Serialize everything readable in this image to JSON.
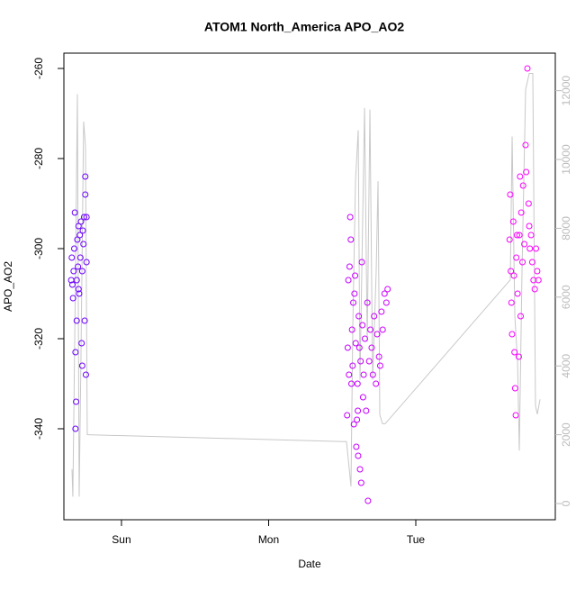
{
  "chart_data": {
    "type": "scatter",
    "title": "ATOM1 North_America APO_AO2",
    "x_label": "Date",
    "y_label": "APO_AO2",
    "xlim": [
      -9.39,
      70.75
    ],
    "xticks": [
      {
        "value": 0,
        "label": "Sun"
      },
      {
        "value": 24,
        "label": "Mon"
      },
      {
        "value": 48,
        "label": "Tue"
      }
    ],
    "ylim": [
      -360.2,
      -256.6
    ],
    "yticks": [
      -340,
      -320,
      -300,
      -280,
      -260
    ],
    "y2lim": [
      -470,
      13090
    ],
    "y2ticks": [
      0,
      2000,
      4000,
      6000,
      8000,
      10000,
      12000
    ],
    "color_range": [
      "#6a00ff",
      "#ff00ff"
    ],
    "y2_color": "#bbbbbb",
    "x": [
      -8.2,
      -8.1,
      -8.0,
      -7.9,
      -7.8,
      -7.7,
      -7.6,
      -7.5,
      -7.5,
      -7.4,
      -7.3,
      -7.3,
      -7.2,
      -7.1,
      -7.0,
      -7.0,
      -6.9,
      -6.8,
      -6.7,
      -6.6,
      -6.5,
      -6.4,
      -6.4,
      -6.3,
      -6.2,
      -6.1,
      -6.0,
      -5.9,
      -5.9,
      -5.8,
      -5.7,
      -5.7,
      36.8,
      36.9,
      37.0,
      37.1,
      37.2,
      37.3,
      37.4,
      37.5,
      37.6,
      37.7,
      37.8,
      37.9,
      38.0,
      38.1,
      38.2,
      38.3,
      38.4,
      38.5,
      38.55,
      38.6,
      38.7,
      38.8,
      38.9,
      39.0,
      39.1,
      39.2,
      39.3,
      39.4,
      39.5,
      39.7,
      39.9,
      40.1,
      40.2,
      40.4,
      40.6,
      40.8,
      41.0,
      41.2,
      41.5,
      41.7,
      42.0,
      42.2,
      42.4,
      42.6,
      42.9,
      43.2,
      43.4,
      63.3,
      63.4,
      63.5,
      63.6,
      63.7,
      63.9,
      64.0,
      64.2,
      64.3,
      64.4,
      64.5,
      64.6,
      64.8,
      64.9,
      65.0,
      65.2,
      65.4,
      65.5,
      65.7,
      65.9,
      66.0,
      66.2,
      66.4,
      66.5,
      66.6,
      66.8,
      67.0,
      67.2,
      67.4,
      67.6,
      67.8,
      68.0,
      64.1,
      65.1
    ],
    "values": [
      -307,
      -302,
      -308,
      -311,
      -305,
      -300,
      -292,
      -323,
      -340,
      -334,
      -307,
      -316,
      -298,
      -304,
      -295,
      -309,
      -310,
      -297,
      -302,
      -294,
      -321,
      -326,
      -305,
      -296,
      -299,
      -293,
      -316,
      -288,
      -284,
      -328,
      -303,
      -293,
      -337,
      -322,
      -307,
      -328,
      -304,
      -293,
      -298,
      -330,
      -318,
      -326,
      -312,
      -339,
      -310,
      -306,
      -321,
      -344,
      -338,
      -330,
      -336,
      -346,
      -315,
      -322,
      -349,
      -325,
      -352,
      -303,
      -317,
      -333,
      -328,
      -320,
      -336,
      -312,
      -356,
      -325,
      -318,
      -322,
      -328,
      -315,
      -330,
      -319,
      -324,
      -326,
      -314,
      -318,
      -310,
      -312,
      -309,
      -298,
      -288,
      -305,
      -312,
      -319,
      -294,
      -306,
      -331,
      -337,
      -302,
      -297,
      -310,
      -324,
      -297,
      -284,
      -292,
      -303,
      -286,
      -299,
      -277,
      -283,
      -260,
      -290,
      -295,
      -300,
      -297,
      -303,
      -307,
      -309,
      -300,
      -305,
      -307,
      -323,
      -315
    ],
    "line": {
      "color": "#c8c8c8",
      "axis": "y2",
      "x": [
        -8.07,
        -7.93,
        -7.49,
        -7.19,
        -6.9,
        -6.61,
        -6.17,
        -5.87,
        -5.58,
        -5.43,
        36.7,
        37.43,
        37.73,
        38.17,
        38.61,
        38.9,
        39.64,
        40.08,
        40.52,
        40.96,
        41.54,
        41.84,
        42.13,
        42.57,
        43.01,
        63.41,
        63.71,
        64.15,
        64.59,
        64.88,
        65.32,
        65.91,
        66.5,
        67.08,
        67.52,
        67.82,
        68.26
      ],
      "values": [
        1000,
        200,
        6800,
        11900,
        200,
        4200,
        11100,
        10400,
        2000,
        2000,
        1800,
        500,
        5200,
        9400,
        10850,
        3600,
        11500,
        4700,
        11450,
        3600,
        6750,
        9370,
        2580,
        2320,
        2320,
        6500,
        10670,
        5450,
        4150,
        1540,
        6750,
        12030,
        12500,
        12500,
        2840,
        2600,
        3030
      ]
    }
  }
}
